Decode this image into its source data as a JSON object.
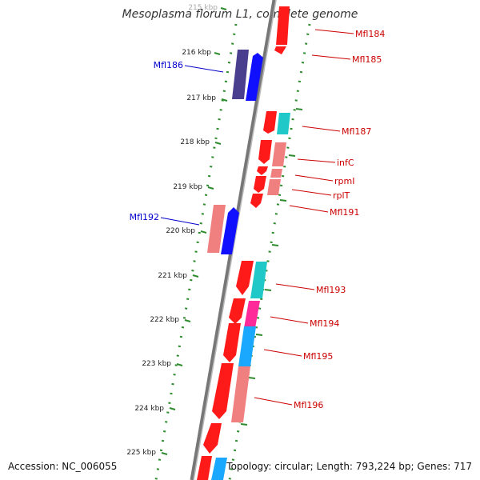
{
  "title": "Mesoplasma florum L1, complete genome",
  "accession": "Accession: NC_006055",
  "summary": "Topology: circular; Length: 793,224 bp; Genes: 717",
  "kbp_ticks": [
    "215 kbp",
    "216 kbp",
    "217 kbp",
    "218 kbp",
    "219 kbp",
    "220 kbp",
    "221 kbp",
    "222 kbp",
    "223 kbp",
    "224 kbp",
    "225 kbp"
  ],
  "colors": {
    "red_label": "#cc0000",
    "blue_label": "#0000cc",
    "backbone": "#888888",
    "tick": "#2e8b2e",
    "red": "#ff1a1a",
    "blue": "#1010ff",
    "navy": "#4a3f8f",
    "pink": "#f08080",
    "teal": "#20c8c8",
    "magenta": "#ff2a9a",
    "sky": "#1aa8ff"
  },
  "labels": {
    "mfl184": "Mfl184",
    "mfl185": "Mfl185",
    "mfl186": "Mfl186",
    "mfl187": "Mfl187",
    "infc": "infC",
    "rpmi": "rpmI",
    "rplt": "rplT",
    "mfl191": "Mfl191",
    "mfl192": "Mfl192",
    "mfl193": "Mfl193",
    "mfl194": "Mfl194",
    "mfl195": "Mfl195",
    "mfl196": "Mfl196"
  }
}
